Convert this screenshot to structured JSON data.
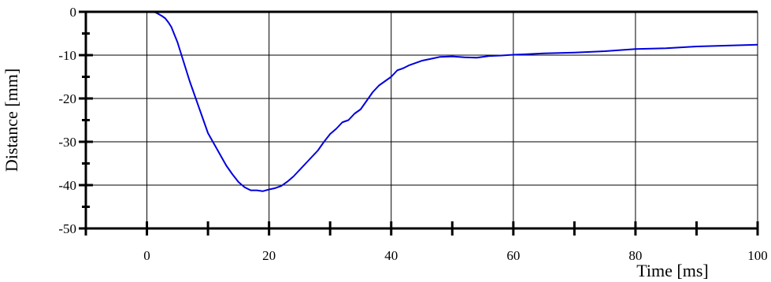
{
  "chart_data": {
    "type": "line",
    "title": "",
    "xlabel": "Time [ms]",
    "ylabel": "Distance [mm]",
    "xlim": [
      -10,
      100
    ],
    "ylim": [
      -50,
      0
    ],
    "grid": true,
    "x_ticks": [
      0,
      20,
      40,
      60,
      80,
      100
    ],
    "x_tick_labels": [
      "0",
      "20",
      "40",
      "60",
      "80",
      "100"
    ],
    "y_ticks": [
      0,
      -10,
      -20,
      -30,
      -40,
      -50
    ],
    "y_tick_labels": [
      "0",
      "-10",
      "-20",
      "-30",
      "-40",
      "-50"
    ],
    "colors": {
      "series": "#0000dd",
      "grid": "#000000",
      "axis": "#000000"
    },
    "series": [
      {
        "x": [
          -10,
          -5,
          0,
          1,
          1.5,
          2,
          2.5,
          3,
          3.5,
          4,
          5,
          6,
          7,
          8,
          9,
          10,
          11,
          12,
          13,
          14,
          15,
          16,
          17,
          18,
          19,
          20,
          21,
          22,
          23,
          24,
          25,
          26,
          27,
          28,
          29,
          30,
          31,
          32,
          33,
          34,
          35,
          36,
          37,
          38,
          39,
          40,
          41,
          42,
          43,
          44,
          45,
          46,
          47,
          48,
          50,
          52,
          54,
          56,
          58,
          60,
          62,
          65,
          70,
          75,
          80,
          85,
          90,
          95,
          100
        ],
        "y": [
          0,
          0,
          0,
          0,
          -0.2,
          -0.6,
          -1,
          -1.5,
          -2.4,
          -3.5,
          -7,
          -11.5,
          -16,
          -20,
          -24,
          -28,
          -30.5,
          -33,
          -35.5,
          -37.5,
          -39.3,
          -40.5,
          -41.2,
          -41.2,
          -41.4,
          -41,
          -40.7,
          -40.2,
          -39.2,
          -38,
          -36.5,
          -35,
          -33.5,
          -32,
          -30,
          -28.2,
          -27,
          -25.5,
          -25,
          -23.5,
          -22.5,
          -20.5,
          -18.5,
          -17,
          -16,
          -15,
          -13.5,
          -13,
          -12.3,
          -11.8,
          -11.3,
          -11,
          -10.7,
          -10.4,
          -10.3,
          -10.5,
          -10.6,
          -10.2,
          -10.1,
          -9.9,
          -9.8,
          -9.6,
          -9.4,
          -9.1,
          -8.6,
          -8.4,
          -8.0,
          -7.8,
          -7.6
        ]
      }
    ]
  }
}
